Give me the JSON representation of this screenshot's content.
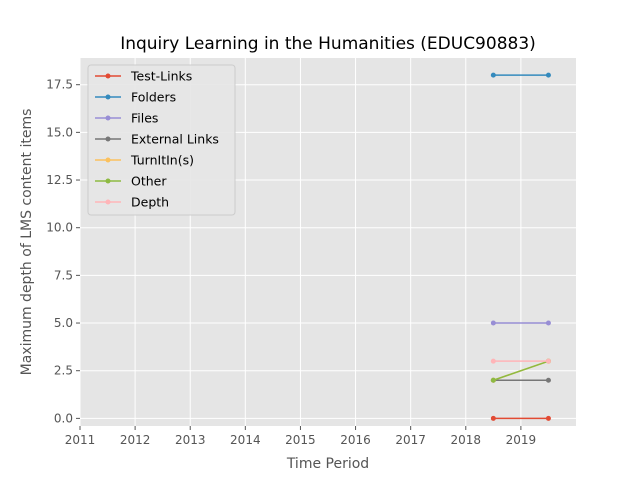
{
  "chart_data": {
    "type": "line",
    "title": "Inquiry Learning in the Humanities (EDUC90883)",
    "xlabel": "Time Period",
    "ylabel": "Maximum depth of LMS content items",
    "xlim": [
      2011,
      2020.0
    ],
    "ylim": [
      -0.4,
      18.9
    ],
    "xticks": [
      2011,
      2012,
      2013,
      2014,
      2015,
      2016,
      2017,
      2018,
      2019
    ],
    "yticks": [
      0.0,
      2.5,
      5.0,
      7.5,
      10.0,
      12.5,
      15.0,
      17.5
    ],
    "xtick_labels": [
      "2011",
      "2012",
      "2013",
      "2014",
      "2015",
      "2016",
      "2017",
      "2018",
      "2019"
    ],
    "ytick_labels": [
      "0.0",
      "2.5",
      "5.0",
      "7.5",
      "10.0",
      "12.5",
      "15.0",
      "17.5"
    ],
    "grid": true,
    "legend_position": "top-left",
    "x": [
      2018.5,
      2019.5
    ],
    "series": [
      {
        "name": "Test-Links",
        "color": "#E24A33",
        "values": [
          0,
          0
        ]
      },
      {
        "name": "Folders",
        "color": "#348ABD",
        "values": [
          18,
          18
        ]
      },
      {
        "name": "Files",
        "color": "#988ED5",
        "values": [
          5,
          5
        ]
      },
      {
        "name": "External Links",
        "color": "#777777",
        "values": [
          2,
          2
        ]
      },
      {
        "name": "TurnItIn(s)",
        "color": "#FBC15E",
        "values": [
          2,
          3
        ]
      },
      {
        "name": "Other",
        "color": "#8EBA42",
        "values": [
          2,
          3
        ]
      },
      {
        "name": "Depth",
        "color": "#FFB5B8",
        "values": [
          3,
          3
        ]
      }
    ]
  }
}
